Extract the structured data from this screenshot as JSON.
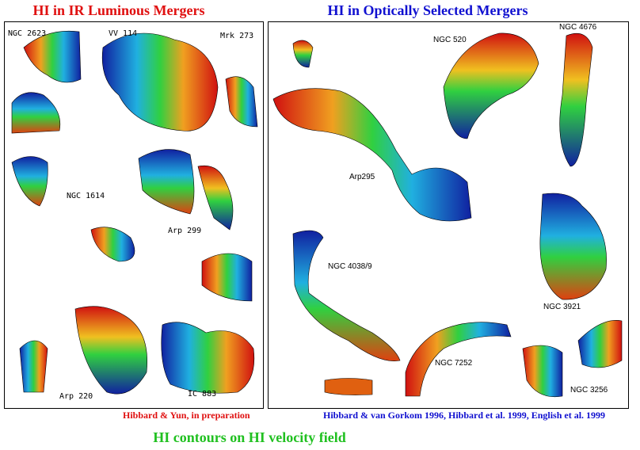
{
  "titles": [
    "HI in IR Luminous Mergers",
    "HI in Optically Selected Mergers"
  ],
  "panels": [
    {
      "labels": [
        "NGC 2623",
        "VV 114",
        "Mrk 273",
        "NGC 1614",
        "Arp 299",
        "Arp 220",
        "IC 883"
      ]
    },
    {
      "labels": [
        "NGC 520",
        "NGC 4676",
        "Arp295",
        "NGC 4038/9",
        "NGC 3921",
        "NGC 7252",
        "NGC 3256"
      ]
    }
  ],
  "credits": [
    "Hibbard & Yun, in preparation",
    "Hibbard & van Gorkom 1996, Hibbard et al. 1999, English et al. 1999"
  ],
  "caption": "HI contours on HI velocity field"
}
